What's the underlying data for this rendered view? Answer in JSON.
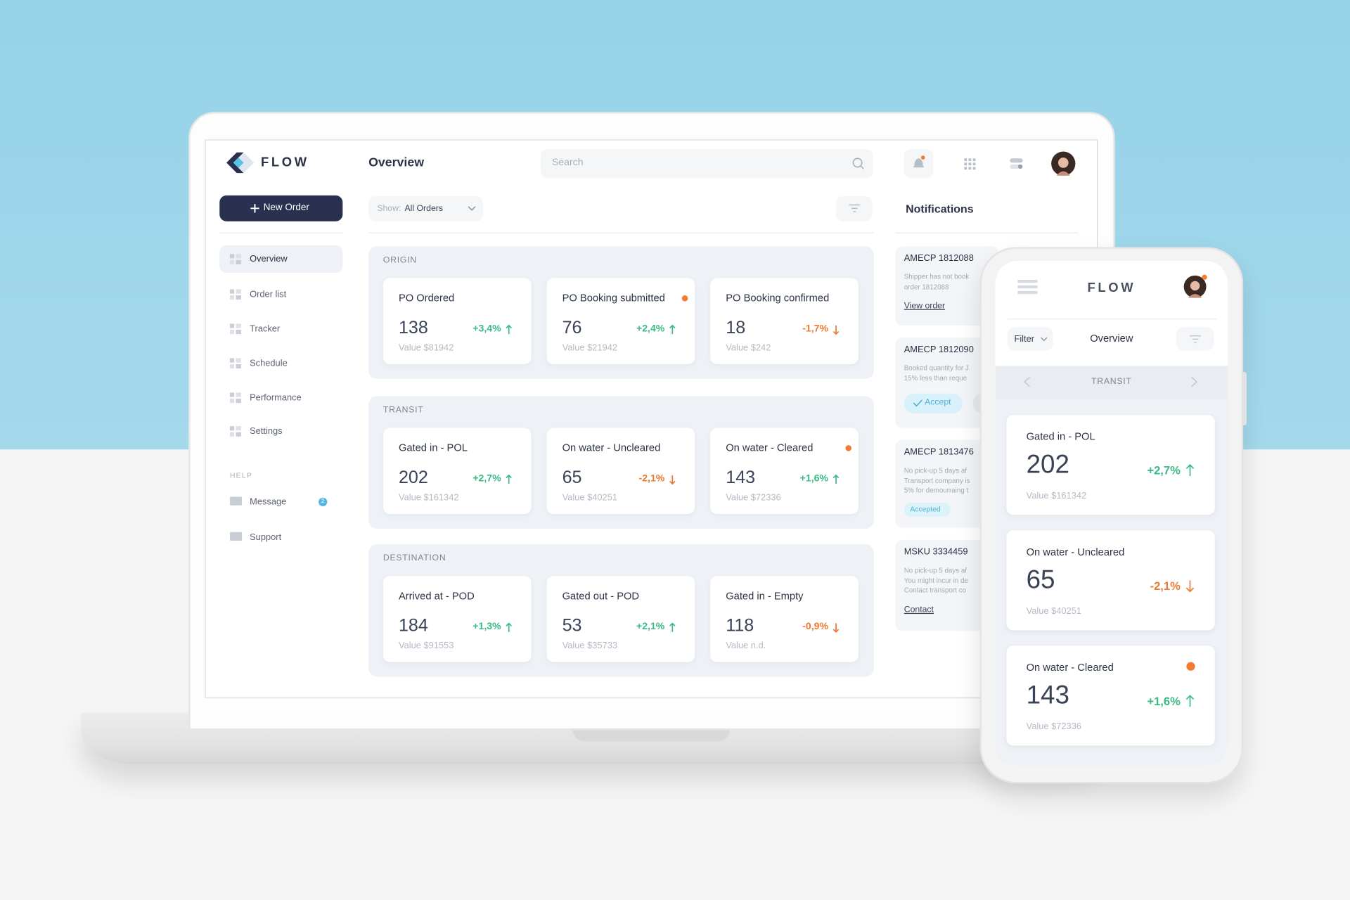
{
  "app": {
    "logo": "FLOW",
    "new_order": "New Order",
    "nav": [
      "Overview",
      "Order list",
      "Tracker",
      "Schedule",
      "Performance",
      "Settings"
    ],
    "help_label": "HELP",
    "help": [
      {
        "label": "Message",
        "badge": "2"
      },
      {
        "label": "Support"
      }
    ],
    "header": {
      "title": "Overview",
      "search": "Search"
    },
    "filter": {
      "prefix": "Show:",
      "value": "All Orders"
    },
    "sections": [
      {
        "label": "ORIGIN",
        "cards": [
          {
            "title": "PO Ordered",
            "count": 138,
            "change": "+3,4%",
            "value": "Value $81942",
            "alert": false
          },
          {
            "title": "PO Booking submitted",
            "count": 76,
            "change": "+2,4%",
            "value": "Value $21942",
            "alert": true
          },
          {
            "title": "PO Booking confirmed",
            "count": 18,
            "change": "-1,7%",
            "value": "Value $242",
            "alert": false
          }
        ]
      },
      {
        "label": "TRANSIT",
        "cards": [
          {
            "title": "Gated in - POL",
            "count": 202,
            "change": "+2,7%",
            "value": "Value $161342",
            "alert": false
          },
          {
            "title": "On water - Uncleared",
            "count": 65,
            "change": "-2,1%",
            "value": "Value $40251",
            "alert": false
          },
          {
            "title": "On water - Cleared",
            "count": 143,
            "change": "+1,6%",
            "value": "Value $72336",
            "alert": true
          }
        ]
      },
      {
        "label": "DESTINATION",
        "cards": [
          {
            "title": "Arrived at - POD",
            "count": 184,
            "change": "+1,3%",
            "value": "Value $91553",
            "alert": false
          },
          {
            "title": "Gated out - POD",
            "count": 53,
            "change": "+2,1%",
            "value": "Value $35733",
            "alert": false
          },
          {
            "title": "Gated in - Empty",
            "count": 118,
            "change": "-0,9%",
            "value": "Value n.d.",
            "alert": false
          }
        ]
      }
    ],
    "notifications": {
      "title": "Notifications",
      "items": [
        {
          "id": "AMECP 1812088",
          "lines": [
            "Shipper has not book",
            "order 1812088"
          ],
          "link": "View order"
        },
        {
          "id": "AMECP 1812090",
          "lines": [
            "Booked quantity for J",
            "15% less than reque"
          ],
          "button": "Accept"
        },
        {
          "id": "AMECP 1813476",
          "lines": [
            "No pick-up 5 days af",
            "Transport company is",
            "5% for demourraing t"
          ],
          "status": "Accepted"
        },
        {
          "id": "MSKU 3334459",
          "lines": [
            "No pick-up 5 days af",
            "You might incur in de",
            "Contact transport co"
          ],
          "link": "Contact"
        }
      ]
    },
    "mobile": {
      "filter": "Filter",
      "title": "Overview",
      "section": 1
    }
  }
}
